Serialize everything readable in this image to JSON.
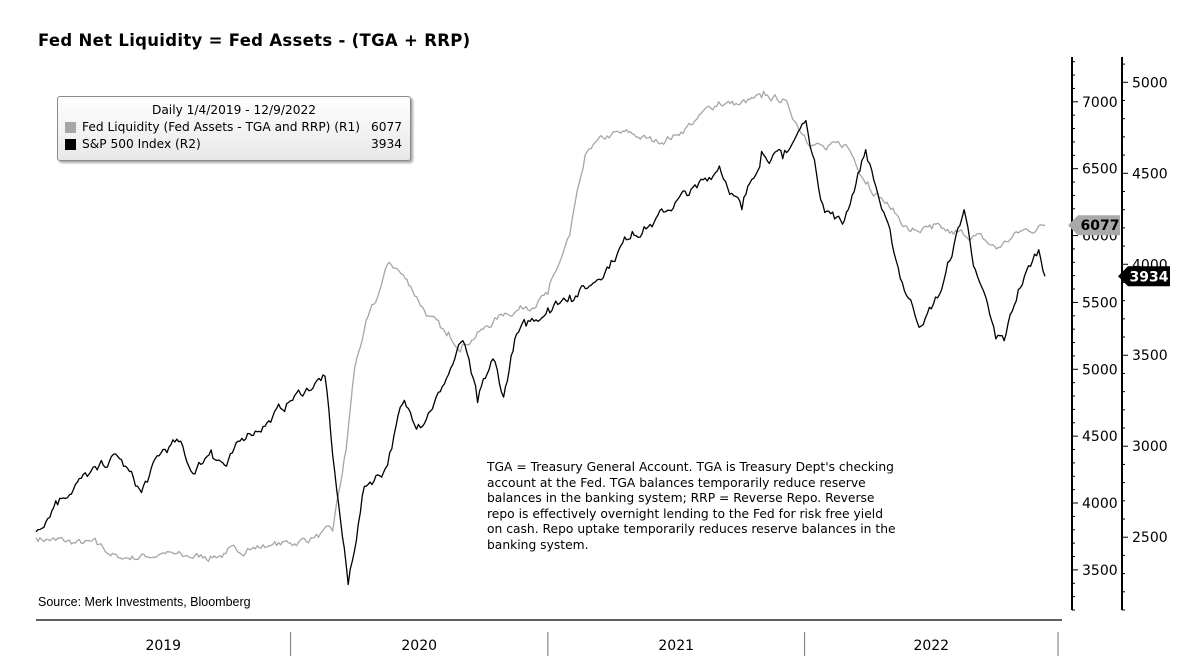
{
  "chart_data": {
    "type": "line",
    "title": "Fed Net Liquidity = Fed Assets - (TGA + RRP)",
    "legend_title": "Daily 1/4/2019 - 12/9/2022",
    "legend_placement": "top-left",
    "grid": false,
    "x_ticks": [
      "2019",
      "2020",
      "2021",
      "2022"
    ],
    "xlim": [
      "2019-01-04",
      "2022-12-09"
    ],
    "axes": {
      "R1": {
        "ticks": [
          3500,
          4000,
          4500,
          5000,
          5500,
          6000,
          6500,
          7000
        ],
        "ylim": [
          3200,
          7350
        ]
      },
      "R2": {
        "ticks": [
          2500,
          3000,
          3500,
          4000,
          4500,
          5000
        ],
        "ylim": [
          2100,
          5150
        ]
      }
    },
    "series": [
      {
        "name": "Fed Liquidity (Fed Assets - TGA and RRP) (R1)",
        "axis": "R1",
        "color": "#a6a6a6",
        "last_label": "6077",
        "points": [
          [
            "2019-01-04",
            3740
          ],
          [
            "2019-02-01",
            3720
          ],
          [
            "2019-03-01",
            3700
          ],
          [
            "2019-04-01",
            3690
          ],
          [
            "2019-05-01",
            3590
          ],
          [
            "2019-06-01",
            3600
          ],
          [
            "2019-07-01",
            3620
          ],
          [
            "2019-08-01",
            3600
          ],
          [
            "2019-09-01",
            3600
          ],
          [
            "2019-10-01",
            3620
          ],
          [
            "2019-11-01",
            3660
          ],
          [
            "2019-12-01",
            3680
          ],
          [
            "2020-01-01",
            3700
          ],
          [
            "2020-02-01",
            3740
          ],
          [
            "2020-03-01",
            3790
          ],
          [
            "2020-03-20",
            4400
          ],
          [
            "2020-04-01",
            5000
          ],
          [
            "2020-04-15",
            5300
          ],
          [
            "2020-05-01",
            5500
          ],
          [
            "2020-05-20",
            5800
          ],
          [
            "2020-06-01",
            5750
          ],
          [
            "2020-06-20",
            5620
          ],
          [
            "2020-07-15",
            5400
          ],
          [
            "2020-08-10",
            5250
          ],
          [
            "2020-09-01",
            5180
          ],
          [
            "2020-10-01",
            5300
          ],
          [
            "2020-11-01",
            5420
          ],
          [
            "2020-12-01",
            5470
          ],
          [
            "2021-01-01",
            5560
          ],
          [
            "2021-02-01",
            6000
          ],
          [
            "2021-02-20",
            6500
          ],
          [
            "2021-03-01",
            6650
          ],
          [
            "2021-04-01",
            6750
          ],
          [
            "2021-05-01",
            6760
          ],
          [
            "2021-06-01",
            6700
          ],
          [
            "2021-07-01",
            6750
          ],
          [
            "2021-08-01",
            6870
          ],
          [
            "2021-09-01",
            7000
          ],
          [
            "2021-10-01",
            6980
          ],
          [
            "2021-11-01",
            7030
          ],
          [
            "2021-12-01",
            7020
          ],
          [
            "2022-01-01",
            6750
          ],
          [
            "2022-02-01",
            6640
          ],
          [
            "2022-03-01",
            6680
          ],
          [
            "2022-04-01",
            6400
          ],
          [
            "2022-05-01",
            6220
          ],
          [
            "2022-06-01",
            6030
          ],
          [
            "2022-07-01",
            6050
          ],
          [
            "2022-08-01",
            6010
          ],
          [
            "2022-09-01",
            6000
          ],
          [
            "2022-10-01",
            5900
          ],
          [
            "2022-11-01",
            6020
          ],
          [
            "2022-12-09",
            6077
          ]
        ]
      },
      {
        "name": "S&P 500 Index (R2)",
        "axis": "R2",
        "color": "#000000",
        "last_label": "3934",
        "points": [
          [
            "2019-01-04",
            2530
          ],
          [
            "2019-02-01",
            2700
          ],
          [
            "2019-03-01",
            2790
          ],
          [
            "2019-04-01",
            2870
          ],
          [
            "2019-04-30",
            2945
          ],
          [
            "2019-06-03",
            2745
          ],
          [
            "2019-07-01",
            2965
          ],
          [
            "2019-07-26",
            3025
          ],
          [
            "2019-08-15",
            2850
          ],
          [
            "2019-09-10",
            2980
          ],
          [
            "2019-10-02",
            2890
          ],
          [
            "2019-11-01",
            3070
          ],
          [
            "2019-12-01",
            3140
          ],
          [
            "2020-01-01",
            3250
          ],
          [
            "2020-02-19",
            3385
          ],
          [
            "2020-03-01",
            2950
          ],
          [
            "2020-03-23",
            2240
          ],
          [
            "2020-04-15",
            2780
          ],
          [
            "2020-05-15",
            2880
          ],
          [
            "2020-06-08",
            3230
          ],
          [
            "2020-07-01",
            3120
          ],
          [
            "2020-08-01",
            3300
          ],
          [
            "2020-09-02",
            3580
          ],
          [
            "2020-09-23",
            3240
          ],
          [
            "2020-10-15",
            3480
          ],
          [
            "2020-10-30",
            3270
          ],
          [
            "2020-11-15",
            3590
          ],
          [
            "2020-12-01",
            3660
          ],
          [
            "2021-01-01",
            3760
          ],
          [
            "2021-02-01",
            3830
          ],
          [
            "2021-03-01",
            3880
          ],
          [
            "2021-04-01",
            4020
          ],
          [
            "2021-05-01",
            4180
          ],
          [
            "2021-06-01",
            4230
          ],
          [
            "2021-07-01",
            4340
          ],
          [
            "2021-08-01",
            4420
          ],
          [
            "2021-09-02",
            4540
          ],
          [
            "2021-10-04",
            4300
          ],
          [
            "2021-11-01",
            4620
          ],
          [
            "2021-12-01",
            4580
          ],
          [
            "2022-01-03",
            4790
          ],
          [
            "2022-01-27",
            4330
          ],
          [
            "2022-02-24",
            4220
          ],
          [
            "2022-03-29",
            4630
          ],
          [
            "2022-04-15",
            4390
          ],
          [
            "2022-05-20",
            3900
          ],
          [
            "2022-06-16",
            3660
          ],
          [
            "2022-07-15",
            3860
          ],
          [
            "2022-08-16",
            4300
          ],
          [
            "2022-09-01",
            3970
          ],
          [
            "2022-09-30",
            3590
          ],
          [
            "2022-10-12",
            3580
          ],
          [
            "2022-11-01",
            3860
          ],
          [
            "2022-11-30",
            4080
          ],
          [
            "2022-12-09",
            3934
          ]
        ]
      }
    ]
  },
  "annotation": "TGA = Treasury General Account. TGA is Treasury Dept's checking account at the Fed. TGA balances temporarily reduce reserve balances in the banking system; RRP = Reverse Repo. Reverse repo is effectively overnight lending to the Fed for risk free yield on cash. Repo uptake temporarily reduces reserve balances in the banking system.",
  "source": "Source: Merk Investments, Bloomberg",
  "legend": {
    "period": "Daily 1/4/2019 - 12/9/2022",
    "items": [
      {
        "label": "Fed Liquidity (Fed Assets - TGA and RRP) (R1)",
        "value": "6077",
        "color": "#a6a6a6"
      },
      {
        "label": "S&P 500 Index (R2)",
        "value": "3934",
        "color": "#000000"
      }
    ]
  }
}
